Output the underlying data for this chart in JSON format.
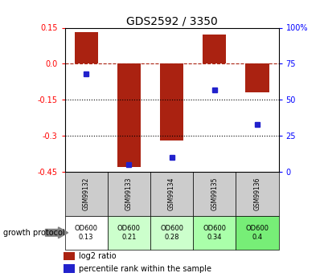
{
  "title": "GDS2592 / 3350",
  "samples": [
    "GSM99132",
    "GSM99133",
    "GSM99134",
    "GSM99135",
    "GSM99136"
  ],
  "log2_ratio": [
    0.13,
    -0.43,
    -0.32,
    0.12,
    -0.12
  ],
  "percentile_rank": [
    68,
    5,
    10,
    57,
    33
  ],
  "ylim_left": [
    -0.45,
    0.15
  ],
  "ylim_right": [
    0,
    100
  ],
  "yticks_left": [
    0.15,
    0.0,
    -0.15,
    -0.3,
    -0.45
  ],
  "yticks_right": [
    100,
    75,
    50,
    25,
    0
  ],
  "bar_color": "#aa2211",
  "dot_color": "#2222cc",
  "hline_y": 0.0,
  "dotted_lines": [
    -0.15,
    -0.3
  ],
  "growth_protocol_labels": [
    "OD600\n0.13",
    "OD600\n0.21",
    "OD600\n0.28",
    "OD600\n0.34",
    "OD600\n0.4"
  ],
  "cell_colors": [
    "#ffffff",
    "#ccffcc",
    "#ccffcc",
    "#aaffaa",
    "#77ee77"
  ],
  "bar_width": 0.55,
  "figsize": [
    4.03,
    3.45
  ],
  "dpi": 100
}
